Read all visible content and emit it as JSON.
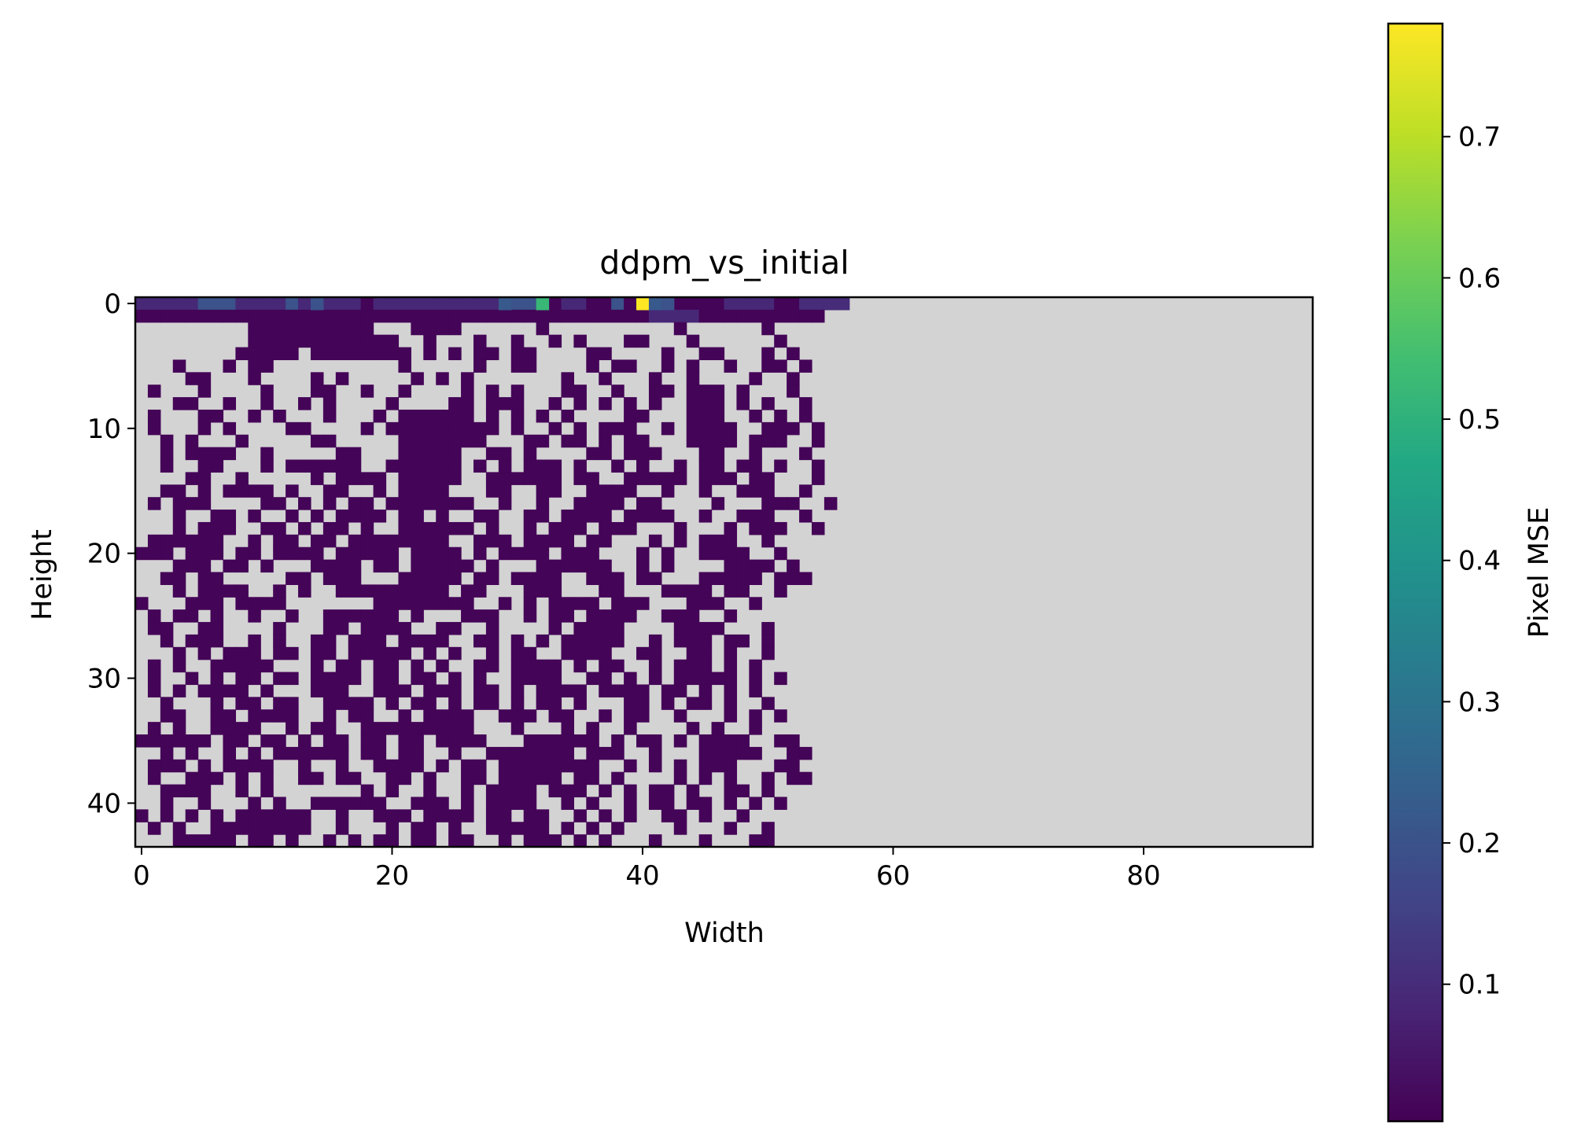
{
  "chart_data": {
    "type": "heatmap",
    "title": "ddpm_vs_initial",
    "xlabel": "Width",
    "ylabel": "Height",
    "grid_width": 94,
    "grid_height": 44,
    "xlim": [
      -0.5,
      93.5
    ],
    "ylim": [
      43.5,
      -0.5
    ],
    "x_ticks": [
      0,
      20,
      40,
      60,
      80
    ],
    "y_ticks": [
      0,
      10,
      20,
      30,
      40
    ],
    "colormap": "viridis",
    "masked_color": "#d3d3d3",
    "grid": false,
    "colorbar": {
      "label": "Pixel MSE",
      "range": [
        0.003,
        0.78
      ],
      "ticks": [
        0.1,
        0.2,
        0.3,
        0.4,
        0.5,
        0.6,
        0.7
      ]
    },
    "notable_values": [
      {
        "row": 0,
        "col": 40,
        "value": 0.78
      },
      {
        "row": 0,
        "col": 32,
        "value": 0.52
      },
      {
        "row": 0,
        "col": 29,
        "value": 0.22
      },
      {
        "row": 0,
        "col": 14,
        "value": 0.2
      },
      {
        "row": 0,
        "col": 41,
        "value": 0.22
      },
      {
        "row": 0,
        "col": 42,
        "value": 0.2
      }
    ],
    "data_rows": [
      "222223332222322222122222222221332122113111;11112222110000",
      "1111111111111111111111111111111111111111122221111111111",
      ".........1111111111...1111......1..........1......1",
      ".........111111111111..1...1..1..1.1...11...1......1",
      "........11111.11111111.1.1.11.11....11....1..11...1.1",
      "...1...1.11..........1.....1..11....1.11..1.1..1..11.1",
      "....11...1....1.1.....1.1.1.......1..1...1..1....1..1",
      ".1...1....1...11..1..1....1.1.1...11..1..11.111.1...1",
      "...11..1..1..1.1....1....11.111..1.1.1.1.1..111.1.1..1",
      ".1...11..1.1...1...1.111111.1.1.1.1....11...111..1.1.1",
      ".1...1.1....11....1.111111111.1..1.1.111..1.1111..111.1",
      "..1.1...1.....11.....1111111...11.11.1.11...1111.111..1",
      "..1.1111..1.....11...11111..11.1....11.111...11..1...1",
      "..1..11...1.111111..111111.1.1.111.1..1.1..1.11.11.1..1",
      "....11..1.....1.1111.11111..111111.11..11111.111.11...1",
      "..11.1.1111.1..11..1.1111...11..11..1111..1..1..111..1",
      ".1.111....11.1.1.11.1111111..1..1..1111.11....1...111..1",
      "...1..11.1..1.1.1111.11.1..11..11.1111.1111..1..111..1",
      "...1.111..11.1.11.1..111111.1..1.111.111...1...1.111..1",
      ".111111..1.11.11.11111111..111.1111.11...1.1.111..1",
      "111.111.11.1111.11111.1111.1.1111.111...1.1..1111..1",
      "...111.11.1...1111.11.11111.1...111111..1.1....1111.1",
      "..11.11.....11.111...11111.11.1111..111.11...11111.111",
      "...1.1111..1.1..111111111.11...111...11...1111.11..1",
      "1...111.1111.......11111111..1.1.1111.111...111..1",
      ".1.11.1..1..1..111111.1...111..1.11.1111..111..1",
      ".11..11....1...11.1111..11..1....1.1111....1111...1",
      "..1.111..1.1..11.111.1111..11.1.1.11111..1.111.11.1",
      "...1.1.111.11.11.11111.1.1..1.11..1111..11..11.1..1",
      ".1.1..11111...1.11.11.1.1..11.1111.1.11..1.111.1.1",
      ".1..1.1.11.11.1111.11.11.1.1..1111..11.1.1.11111.1.1",
      ".1.1.1111.1...111..111.111.11.1.1111.1111.11.1.1.1",
      "..1...1.11.11..1111.1.11.1.11.1.11.1...11.1.11.1..1",
      "..11..11.1111..1.11..1.1111..111.11..1.11..1...1.1.1",
      ".1.1..1111..1.11..111111111...1...1.1..1....1.1..1",
      "111111.11.11.1.11.11.11.1111...111111.1.11.1.1111..11",
      "..1.1..1.1.111111.11.11..1..1111111.111..1...11111..11",
      ".111.1.1111..1..1..1111.1.11.11111111..1.1.1.111...11",
      ".1..111.1.1..11.11..11.1..11.11111.11.1....1.1.1..1.11",
      "..1111..1.1.......1.1..1..1.1111.111.1.1.11.1..11.1",
      "..1..1...1.1..111111..111.1.1111..1.1..1.11.11.1.1.1",
      "1.1.1.1.111111..1..111.1111.11.11..1.1.1..11.1..1",
      ".1.1..11111111..1...1.11.1..11111.1.1.1....1...1..1",
      "...11111.11.1..1.1.11.11.11..1.111.1.1...1...1...11"
    ]
  }
}
